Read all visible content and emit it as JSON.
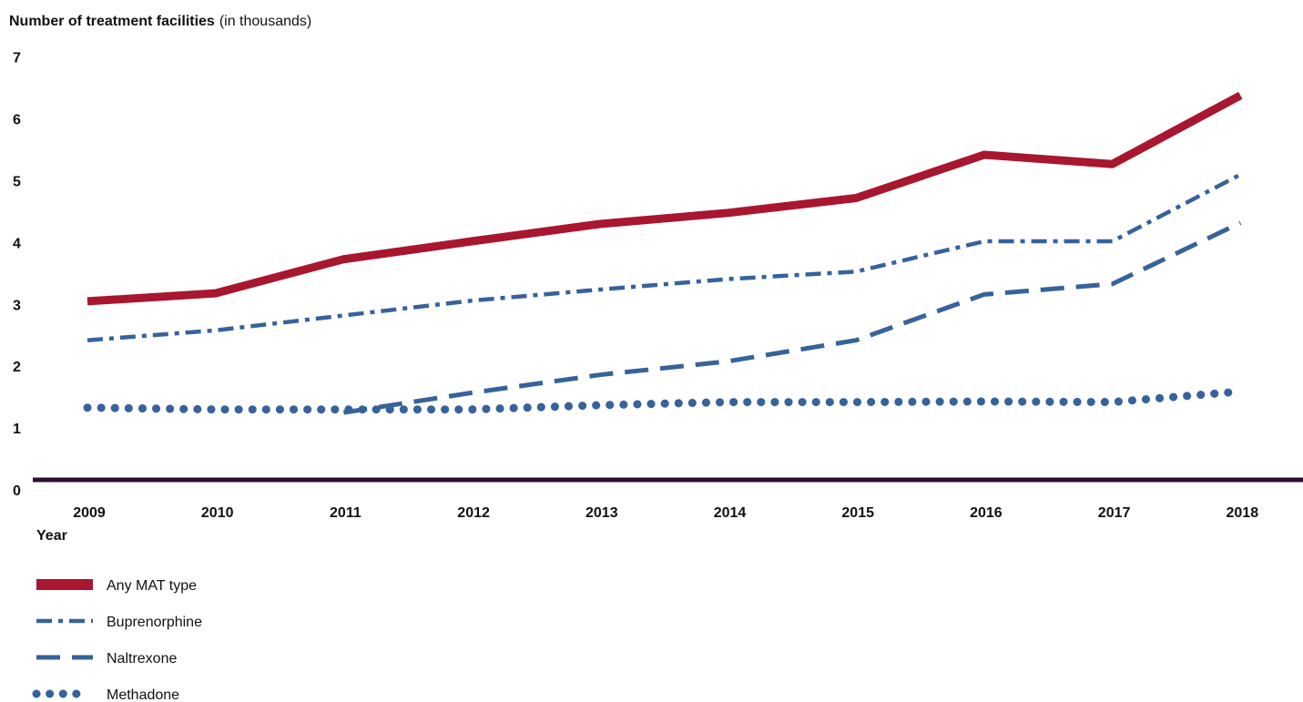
{
  "chart_data": {
    "type": "line",
    "y_title_bold": "Number of treatment facilities",
    "y_title_normal": "(in thousands)",
    "xlabel": "Year",
    "categories": [
      "2009",
      "2010",
      "2011",
      "2012",
      "2013",
      "2014",
      "2015",
      "2016",
      "2017",
      "2018"
    ],
    "yticks": [
      "0",
      "1",
      "2",
      "3",
      "4",
      "5",
      "6",
      "7"
    ],
    "ylim": [
      0,
      7
    ],
    "grid": false,
    "legend_position": "bottom-left",
    "series": [
      {
        "name": "Any MAT type",
        "style": "solid",
        "color": "#a8162f",
        "values": [
          3.05,
          3.18,
          3.73,
          4.02,
          4.3,
          4.48,
          4.72,
          5.42,
          5.27,
          6.38
        ]
      },
      {
        "name": "Buprenorphine",
        "style": "dash-dot",
        "color": "#37629b",
        "values": [
          2.42,
          2.58,
          2.82,
          3.06,
          3.24,
          3.41,
          3.53,
          4.02,
          4.02,
          5.1
        ]
      },
      {
        "name": "Naltrexone",
        "style": "dash",
        "color": "#37629b",
        "values": [
          null,
          null,
          1.25,
          1.57,
          1.86,
          2.08,
          2.42,
          3.16,
          3.33,
          4.32
        ]
      },
      {
        "name": "Methadone",
        "style": "dot",
        "color": "#37629b",
        "values": [
          1.33,
          1.3,
          1.3,
          1.3,
          1.37,
          1.42,
          1.42,
          1.43,
          1.42,
          1.59
        ]
      }
    ]
  }
}
